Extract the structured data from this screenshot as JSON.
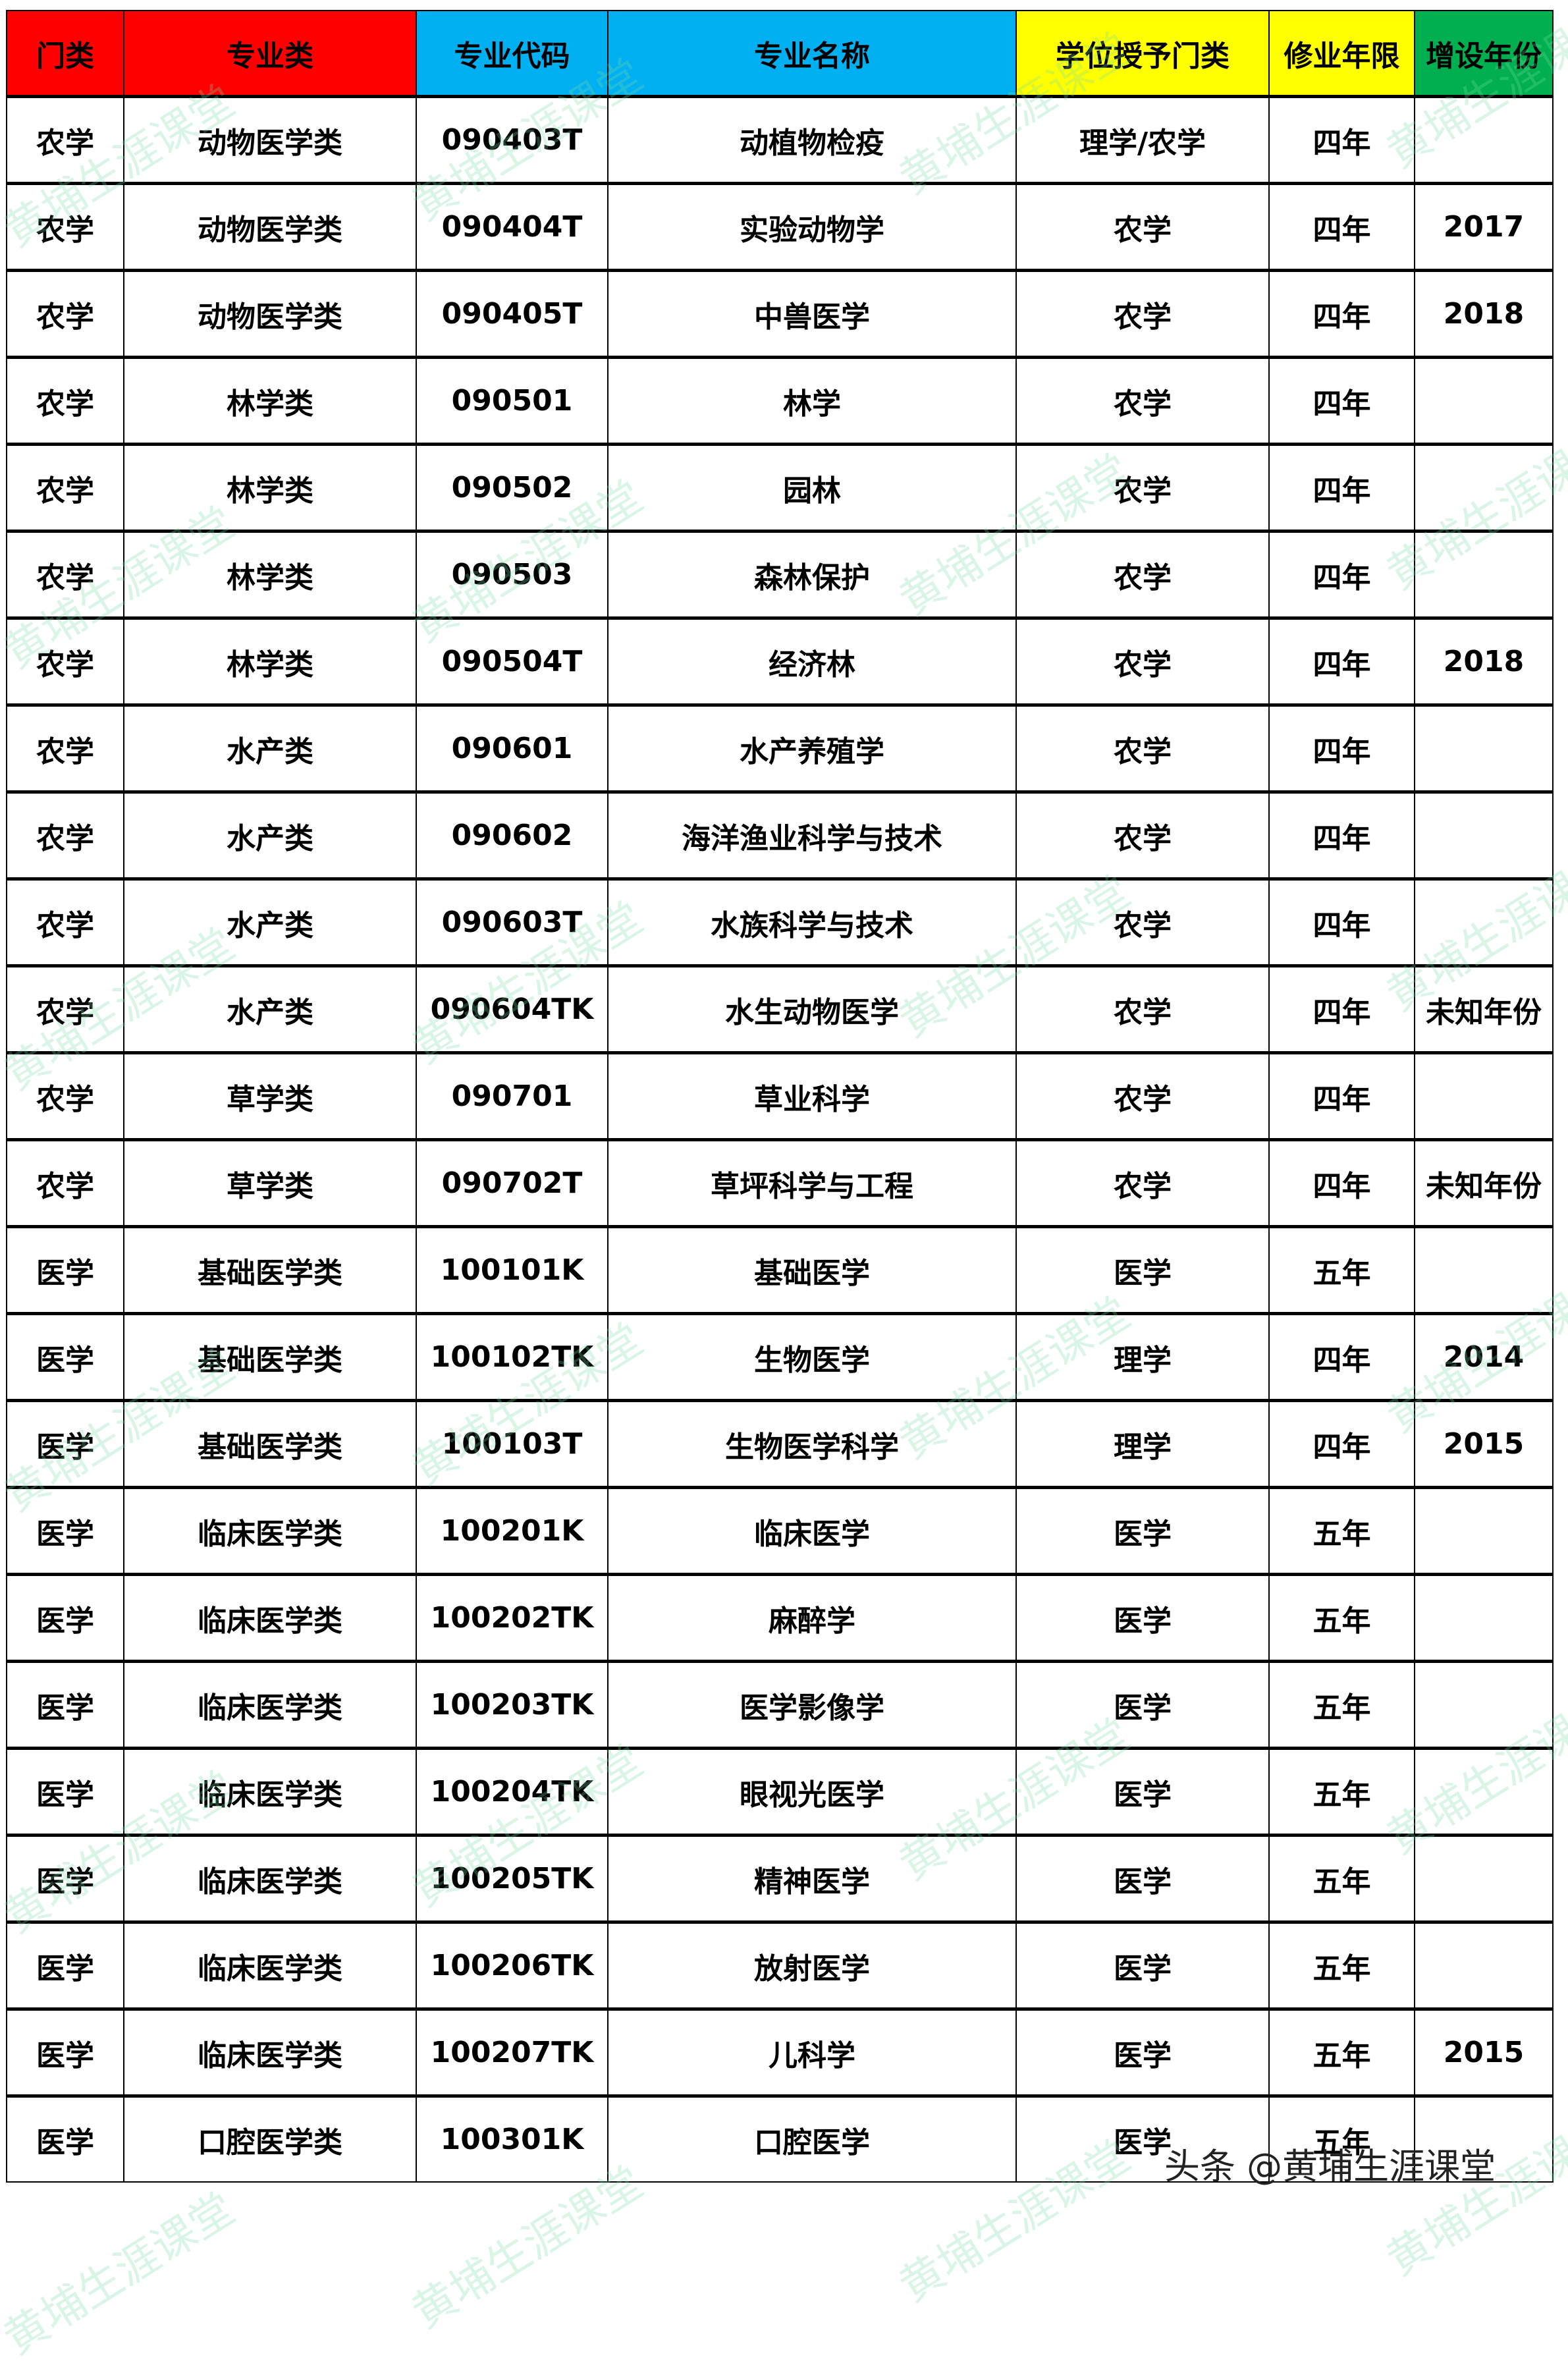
{
  "header": {
    "columns": [
      "门类",
      "专业类",
      "专业代码",
      "专业名称",
      "学位授予门类",
      "修业年限",
      "增设年份"
    ],
    "colors": [
      "#ff0000",
      "#ff0000",
      "#00b0f0",
      "#00b0f0",
      "#ffff00",
      "#ffff00",
      "#00b050"
    ]
  },
  "rows": [
    [
      "农学",
      "动物医学类",
      "090403T",
      "动植物检疫",
      "理学/农学",
      "四年",
      ""
    ],
    [
      "农学",
      "动物医学类",
      "090404T",
      "实验动物学",
      "农学",
      "四年",
      "2017"
    ],
    [
      "农学",
      "动物医学类",
      "090405T",
      "中兽医学",
      "农学",
      "四年",
      "2018"
    ],
    [
      "农学",
      "林学类",
      "090501",
      "林学",
      "农学",
      "四年",
      ""
    ],
    [
      "农学",
      "林学类",
      "090502",
      "园林",
      "农学",
      "四年",
      ""
    ],
    [
      "农学",
      "林学类",
      "090503",
      "森林保护",
      "农学",
      "四年",
      ""
    ],
    [
      "农学",
      "林学类",
      "090504T",
      "经济林",
      "农学",
      "四年",
      "2018"
    ],
    [
      "农学",
      "水产类",
      "090601",
      "水产养殖学",
      "农学",
      "四年",
      ""
    ],
    [
      "农学",
      "水产类",
      "090602",
      "海洋渔业科学与技术",
      "农学",
      "四年",
      ""
    ],
    [
      "农学",
      "水产类",
      "090603T",
      "水族科学与技术",
      "农学",
      "四年",
      ""
    ],
    [
      "农学",
      "水产类",
      "090604TK",
      "水生动物医学",
      "农学",
      "四年",
      "未知年份"
    ],
    [
      "农学",
      "草学类",
      "090701",
      "草业科学",
      "农学",
      "四年",
      ""
    ],
    [
      "农学",
      "草学类",
      "090702T",
      "草坪科学与工程",
      "农学",
      "四年",
      "未知年份"
    ],
    [
      "医学",
      "基础医学类",
      "100101K",
      "基础医学",
      "医学",
      "五年",
      ""
    ],
    [
      "医学",
      "基础医学类",
      "100102TK",
      "生物医学",
      "理学",
      "四年",
      "2014"
    ],
    [
      "医学",
      "基础医学类",
      "100103T",
      "生物医学科学",
      "理学",
      "四年",
      "2015"
    ],
    [
      "医学",
      "临床医学类",
      "100201K",
      "临床医学",
      "医学",
      "五年",
      ""
    ],
    [
      "医学",
      "临床医学类",
      "100202TK",
      "麻醉学",
      "医学",
      "五年",
      ""
    ],
    [
      "医学",
      "临床医学类",
      "100203TK",
      "医学影像学",
      "医学",
      "五年",
      ""
    ],
    [
      "医学",
      "临床医学类",
      "100204TK",
      "眼视光医学",
      "医学",
      "五年",
      ""
    ],
    [
      "医学",
      "临床医学类",
      "100205TK",
      "精神医学",
      "医学",
      "五年",
      ""
    ],
    [
      "医学",
      "临床医学类",
      "100206TK",
      "放射医学",
      "医学",
      "五年",
      ""
    ],
    [
      "医学",
      "临床医学类",
      "100207TK",
      "儿科学",
      "医学",
      "五年",
      "2015"
    ],
    [
      "医学",
      "口腔医学类",
      "100301K",
      "口腔医学",
      "医学",
      "五年",
      ""
    ]
  ],
  "watermark": "黄埔生涯课堂",
  "footer": "头条 @黄埔生涯课堂"
}
